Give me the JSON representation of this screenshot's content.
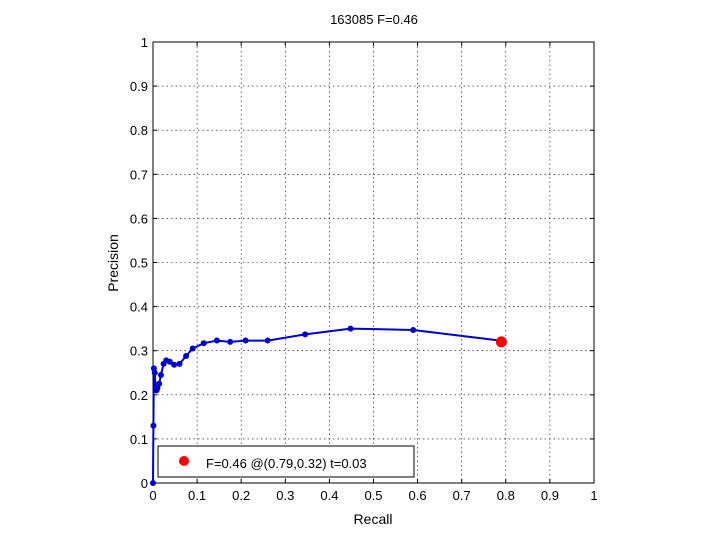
{
  "chart_data": {
    "type": "line",
    "title": "163085 F=0.46",
    "xlabel": "Recall",
    "ylabel": "Precision",
    "xlim": [
      0,
      1
    ],
    "ylim": [
      0,
      1
    ],
    "x_ticks": [
      "0",
      "0.1",
      "0.2",
      "0.3",
      "0.4",
      "0.5",
      "0.6",
      "0.7",
      "0.8",
      "0.9",
      "1"
    ],
    "y_ticks": [
      "0",
      "0.1",
      "0.2",
      "0.3",
      "0.4",
      "0.5",
      "0.6",
      "0.7",
      "0.8",
      "0.9",
      "1"
    ],
    "grid": true,
    "legend_position": "bottom-left",
    "legend": "F=0.46 @(0.79,0.32) t=0.03",
    "series": [
      {
        "color": "#0000cc",
        "points": [
          [
            0.0,
            0.0
          ],
          [
            0.001,
            0.13
          ],
          [
            0.002,
            0.26
          ],
          [
            0.004,
            0.25
          ],
          [
            0.006,
            0.215
          ],
          [
            0.008,
            0.21
          ],
          [
            0.01,
            0.215
          ],
          [
            0.014,
            0.225
          ],
          [
            0.018,
            0.245
          ],
          [
            0.024,
            0.27
          ],
          [
            0.03,
            0.278
          ],
          [
            0.038,
            0.275
          ],
          [
            0.048,
            0.268
          ],
          [
            0.06,
            0.27
          ],
          [
            0.075,
            0.288
          ],
          [
            0.09,
            0.305
          ],
          [
            0.115,
            0.317
          ],
          [
            0.145,
            0.323
          ],
          [
            0.175,
            0.32
          ],
          [
            0.21,
            0.323
          ],
          [
            0.26,
            0.323
          ],
          [
            0.345,
            0.337
          ],
          [
            0.448,
            0.35
          ],
          [
            0.59,
            0.347
          ],
          [
            0.795,
            0.322
          ]
        ]
      }
    ],
    "highlight_point": {
      "recall": 0.79,
      "precision": 0.32,
      "color": "#ff0000"
    }
  }
}
